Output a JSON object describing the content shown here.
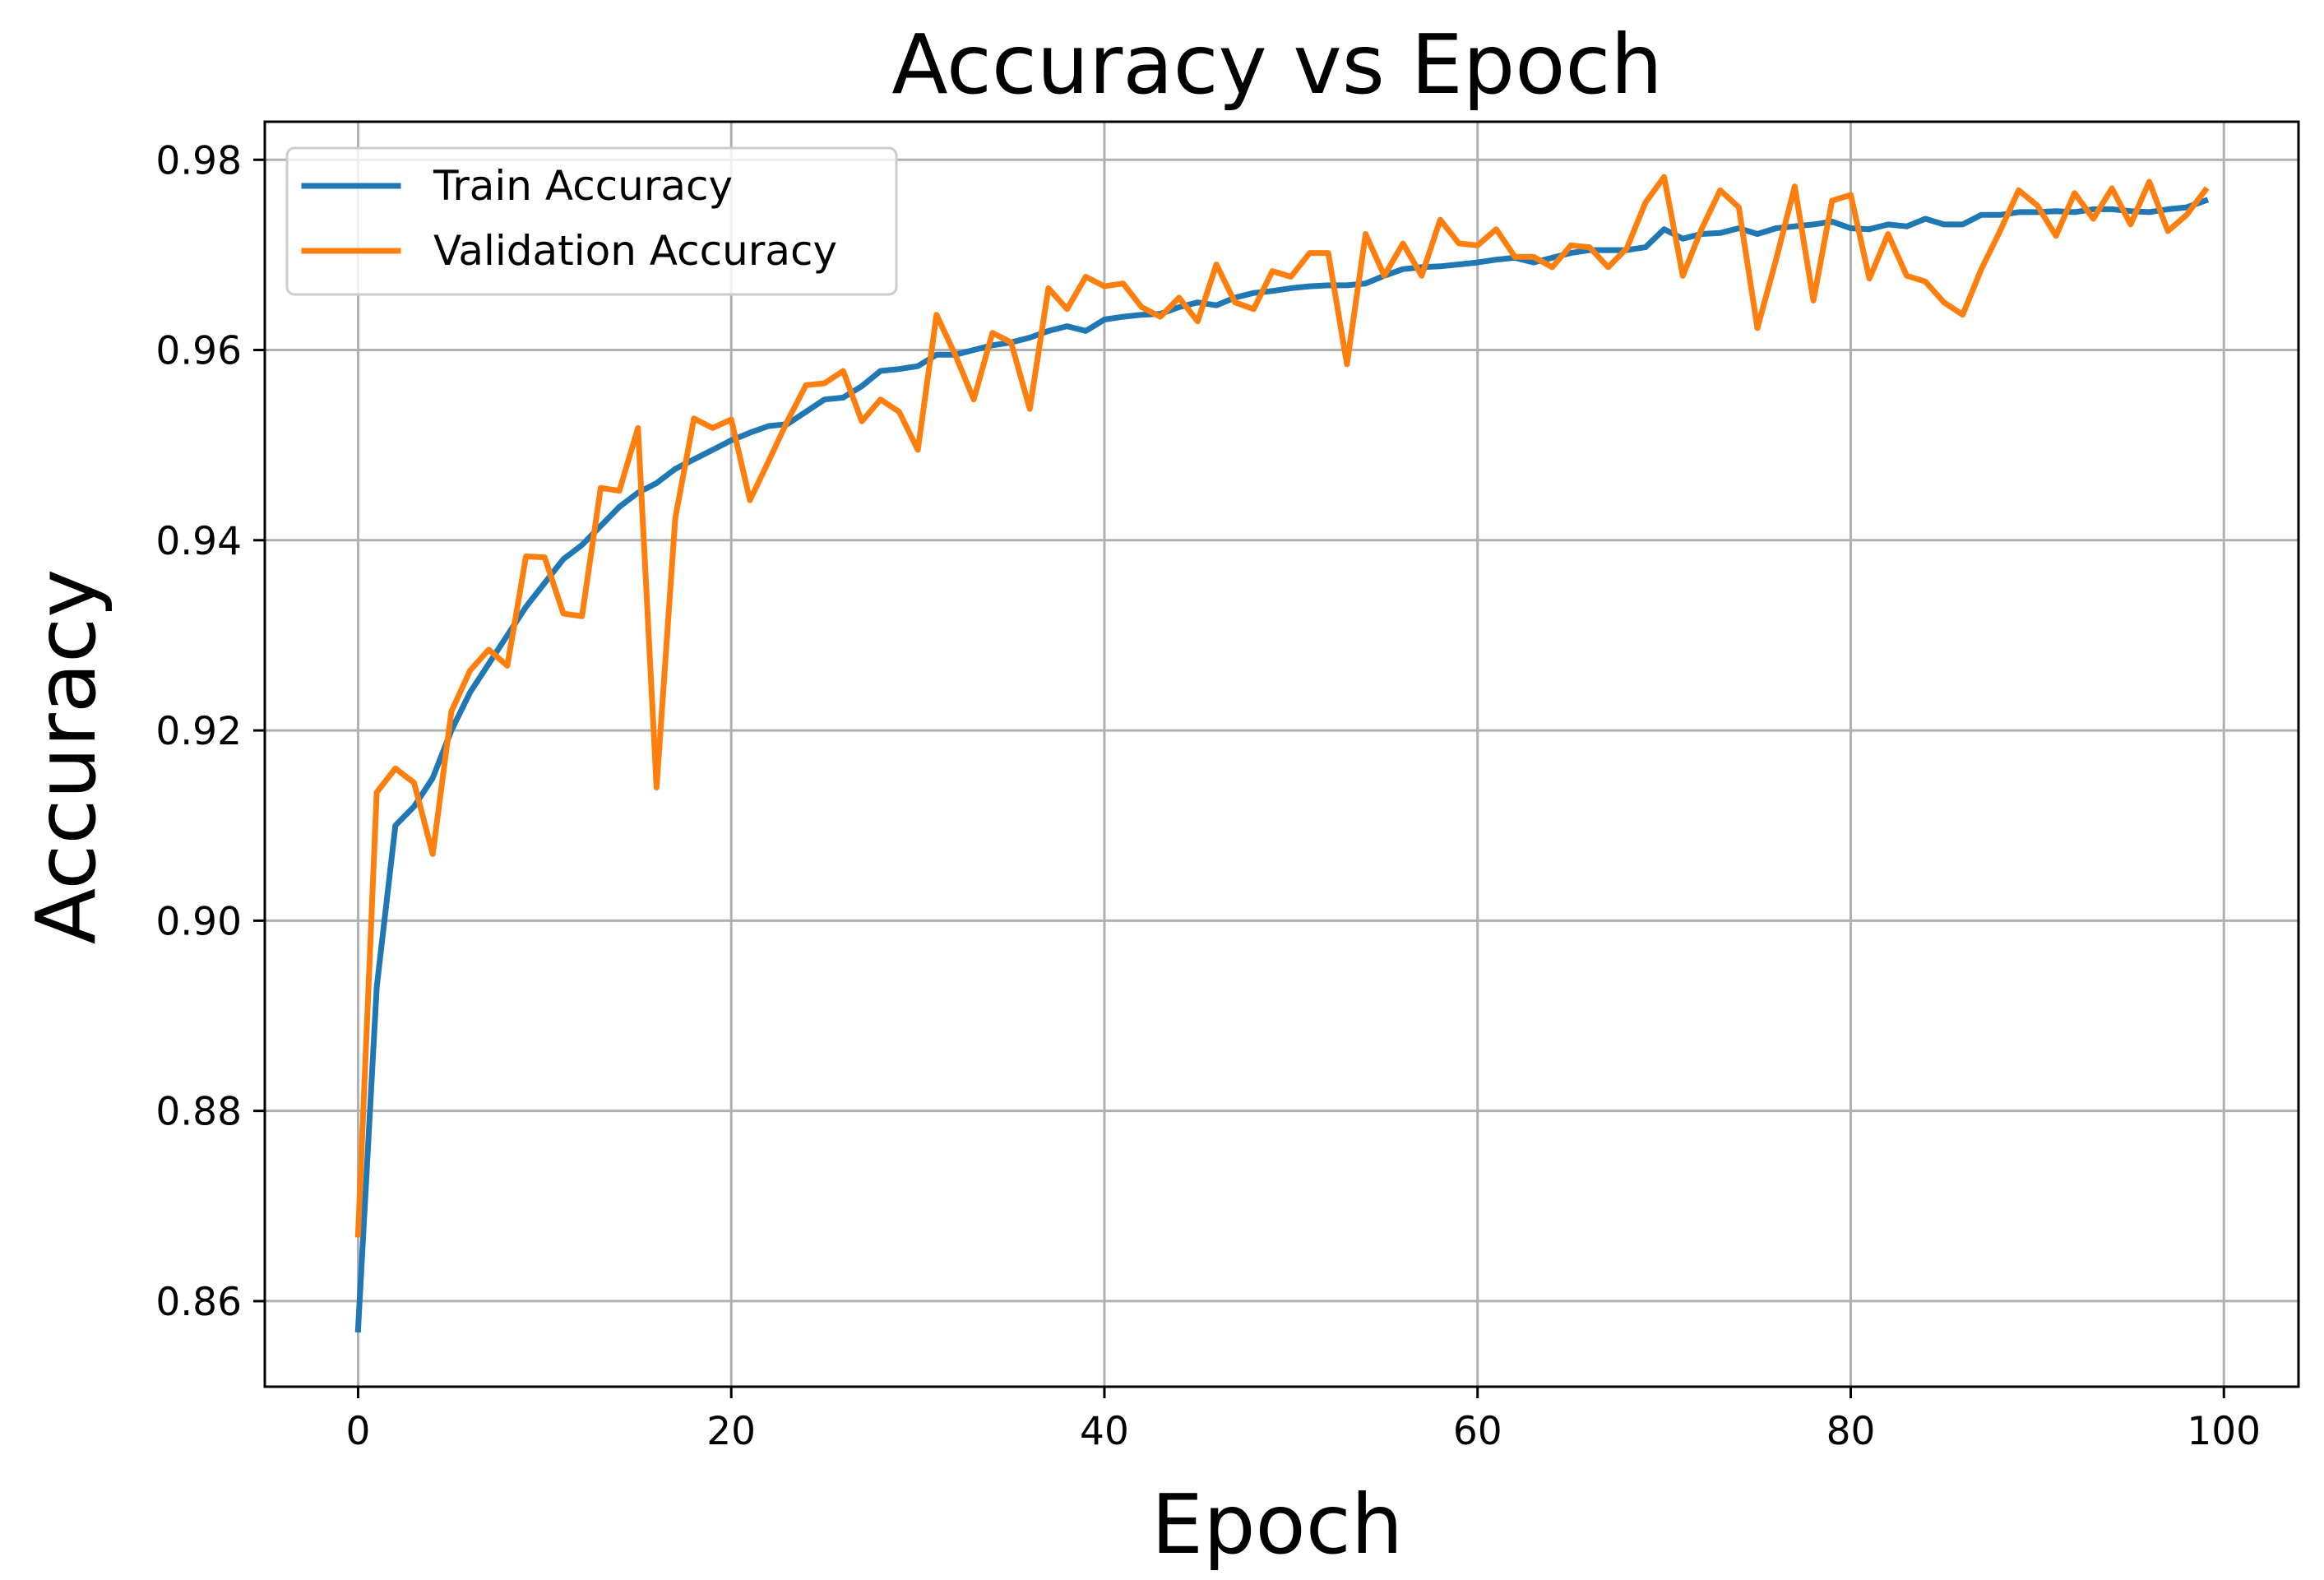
{
  "chart_data": {
    "type": "line",
    "title": "Accuracy vs Epoch",
    "xlabel": "Epoch",
    "ylabel": "Accuracy",
    "xlim": [
      -5,
      104
    ],
    "ylim": [
      0.851,
      0.984
    ],
    "xticks": [
      0,
      20,
      40,
      60,
      80,
      100
    ],
    "yticks": [
      0.86,
      0.88,
      0.9,
      0.92,
      0.94,
      0.96,
      0.98
    ],
    "xtick_labels": [
      "0",
      "20",
      "40",
      "60",
      "80",
      "100"
    ],
    "ytick_labels": [
      "0.86",
      "0.88",
      "0.90",
      "0.92",
      "0.94",
      "0.96",
      "0.98"
    ],
    "grid": true,
    "legend_position": "top-left",
    "x": [
      0,
      1,
      2,
      3,
      4,
      5,
      6,
      7,
      8,
      9,
      10,
      11,
      12,
      13,
      14,
      15,
      16,
      17,
      18,
      19,
      20,
      21,
      22,
      23,
      24,
      25,
      26,
      27,
      28,
      29,
      30,
      31,
      32,
      33,
      34,
      35,
      36,
      37,
      38,
      39,
      40,
      41,
      42,
      43,
      44,
      45,
      46,
      47,
      48,
      49,
      50,
      51,
      52,
      53,
      54,
      55,
      56,
      57,
      58,
      59,
      60,
      61,
      62,
      63,
      64,
      65,
      66,
      67,
      68,
      69,
      70,
      71,
      72,
      73,
      74,
      75,
      76,
      77,
      78,
      79,
      80,
      81,
      82,
      83,
      84,
      85,
      86,
      87,
      88,
      89,
      90,
      91,
      92,
      93,
      94,
      95,
      96,
      97,
      98,
      99
    ],
    "series": [
      {
        "name": "Train Accuracy",
        "color": "#1f77b4",
        "values": [
          0.857,
          0.893,
          0.91,
          0.912,
          0.915,
          0.92,
          0.924,
          0.927,
          0.93,
          0.933,
          0.9355,
          0.938,
          0.9395,
          0.9415,
          0.9435,
          0.945,
          0.946,
          0.9475,
          0.9485,
          0.9495,
          0.9505,
          0.9513,
          0.952,
          0.9522,
          0.9535,
          0.9548,
          0.955,
          0.9562,
          0.9578,
          0.958,
          0.9583,
          0.9595,
          0.9595,
          0.96,
          0.9605,
          0.9608,
          0.9613,
          0.962,
          0.9625,
          0.962,
          0.9632,
          0.9635,
          0.9637,
          0.9638,
          0.9645,
          0.965,
          0.9647,
          0.9655,
          0.966,
          0.9662,
          0.9665,
          0.9667,
          0.9668,
          0.9668,
          0.967,
          0.9678,
          0.9685,
          0.9687,
          0.9688,
          0.969,
          0.9692,
          0.9695,
          0.9697,
          0.9692,
          0.9697,
          0.9702,
          0.9705,
          0.9705,
          0.9705,
          0.9708,
          0.9727,
          0.9717,
          0.9722,
          0.9723,
          0.9728,
          0.9722,
          0.9728,
          0.973,
          0.9732,
          0.9735,
          0.9728,
          0.9727,
          0.9732,
          0.973,
          0.9738,
          0.9732,
          0.9732,
          0.9742,
          0.9742,
          0.9745,
          0.9745,
          0.9746,
          0.9745,
          0.9748,
          0.9748,
          0.9746,
          0.9745,
          0.9748,
          0.975,
          0.9757
        ]
      },
      {
        "name": "Validation Accuracy",
        "color": "#ff7f0e",
        "values": [
          0.867,
          0.9135,
          0.916,
          0.9145,
          0.907,
          0.922,
          0.9263,
          0.9285,
          0.9268,
          0.9383,
          0.9382,
          0.9323,
          0.932,
          0.9455,
          0.9452,
          0.9518,
          0.914,
          0.9423,
          0.9528,
          0.9518,
          0.9527,
          0.9442,
          0.9483,
          0.9525,
          0.9563,
          0.9565,
          0.9578,
          0.9525,
          0.9548,
          0.9535,
          0.9495,
          0.9637,
          0.9595,
          0.9548,
          0.9618,
          0.9608,
          0.9538,
          0.9665,
          0.9643,
          0.9677,
          0.9667,
          0.967,
          0.9645,
          0.9635,
          0.9655,
          0.963,
          0.969,
          0.965,
          0.9643,
          0.9683,
          0.9677,
          0.9702,
          0.9702,
          0.9585,
          0.9722,
          0.9678,
          0.9712,
          0.9678,
          0.9737,
          0.9712,
          0.971,
          0.9727,
          0.9698,
          0.9698,
          0.9687,
          0.971,
          0.9708,
          0.9687,
          0.9707,
          0.9755,
          0.9782,
          0.9678,
          0.9727,
          0.9768,
          0.975,
          0.9623,
          0.9695,
          0.9772,
          0.9652,
          0.9757,
          0.9763,
          0.9675,
          0.9722,
          0.9678,
          0.9672,
          0.965,
          0.9637,
          0.9685,
          0.9725,
          0.9768,
          0.9752,
          0.972,
          0.9765,
          0.9738,
          0.977,
          0.9732,
          0.9777,
          0.9725,
          0.9742,
          0.9768
        ]
      }
    ]
  }
}
